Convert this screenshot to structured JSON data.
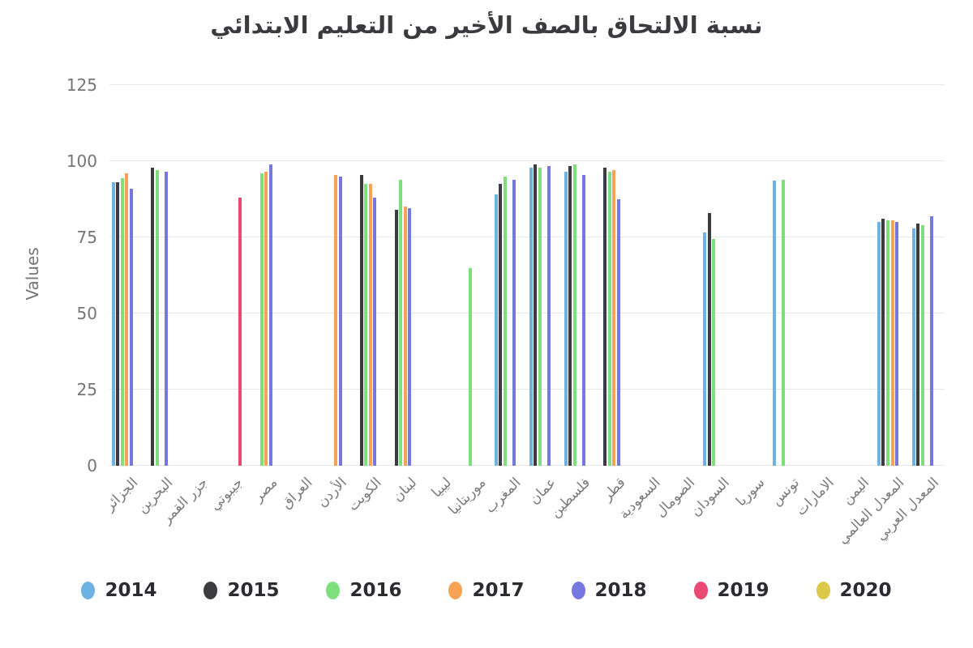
{
  "chart_data": {
    "type": "bar",
    "title": "نسبة الالتحاق بالصف الأخير من التعليم الابتدائي",
    "ylabel": "Values",
    "xlabel": "",
    "yticks": [
      0,
      25,
      50,
      75,
      100,
      125
    ],
    "ylim": [
      0,
      127
    ],
    "grid": true,
    "legend_position": "bottom",
    "categories": [
      "الجزائر",
      "البحرين",
      "جزر القمر",
      "جيبوتي",
      "مصر",
      "العراق",
      "الأردن",
      "الكويت",
      "لبنان",
      "ليبيا",
      "موريتانيا",
      "المغرب",
      "عمان",
      "فلسطين",
      "قطر",
      "السعودية",
      "الصومال",
      "السودان",
      "سوريا",
      "تونس",
      "الامارات",
      "اليمن",
      "المعدل العالمي",
      "المعدل العربي"
    ],
    "series": [
      {
        "name": "2014",
        "color": "#6cb2e2",
        "values": [
          93,
          null,
          null,
          null,
          null,
          null,
          null,
          null,
          null,
          null,
          null,
          89,
          98,
          96.5,
          null,
          null,
          null,
          76.5,
          null,
          93.5,
          null,
          null,
          80,
          78
        ]
      },
      {
        "name": "2015",
        "color": "#3b3b40",
        "values": [
          93,
          98,
          null,
          null,
          null,
          null,
          null,
          95.5,
          84,
          null,
          null,
          92.5,
          99,
          98.5,
          98,
          null,
          null,
          83,
          null,
          null,
          null,
          null,
          81,
          79.5
        ]
      },
      {
        "name": "2016",
        "color": "#7ee07d",
        "values": [
          94.5,
          97,
          null,
          null,
          96,
          null,
          null,
          92.5,
          94,
          null,
          65,
          95,
          98,
          99,
          96.5,
          null,
          null,
          74.5,
          null,
          94,
          null,
          null,
          80.5,
          79
        ]
      },
      {
        "name": "2017",
        "color": "#f6a355",
        "values": [
          96,
          null,
          null,
          null,
          96.5,
          null,
          95.5,
          92.5,
          85,
          null,
          null,
          null,
          null,
          null,
          97,
          null,
          null,
          null,
          null,
          null,
          null,
          null,
          80.5,
          null
        ]
      },
      {
        "name": "2018",
        "color": "#7678e0",
        "values": [
          91,
          96.5,
          null,
          null,
          99,
          null,
          95,
          88,
          84.5,
          null,
          null,
          94,
          98.5,
          95.5,
          87.5,
          null,
          null,
          null,
          null,
          null,
          null,
          null,
          80,
          82
        ]
      },
      {
        "name": "2019",
        "color": "#e84a73",
        "values": [
          null,
          null,
          null,
          88,
          null,
          null,
          null,
          null,
          null,
          null,
          null,
          null,
          null,
          null,
          null,
          null,
          null,
          null,
          null,
          null,
          null,
          null,
          null,
          null
        ]
      },
      {
        "name": "2020",
        "color": "#dcc84b",
        "values": [
          null,
          null,
          null,
          null,
          null,
          null,
          null,
          null,
          null,
          null,
          null,
          null,
          null,
          null,
          null,
          null,
          null,
          null,
          null,
          null,
          null,
          null,
          null,
          null
        ]
      }
    ]
  },
  "colors": {
    "background": "#ffffff",
    "title_text": "#3a3a3f",
    "axis_text": "#747479",
    "tick_text": "#7a7a7f",
    "grid": "#e8e8e8",
    "legend_text": "#2b2b30"
  }
}
